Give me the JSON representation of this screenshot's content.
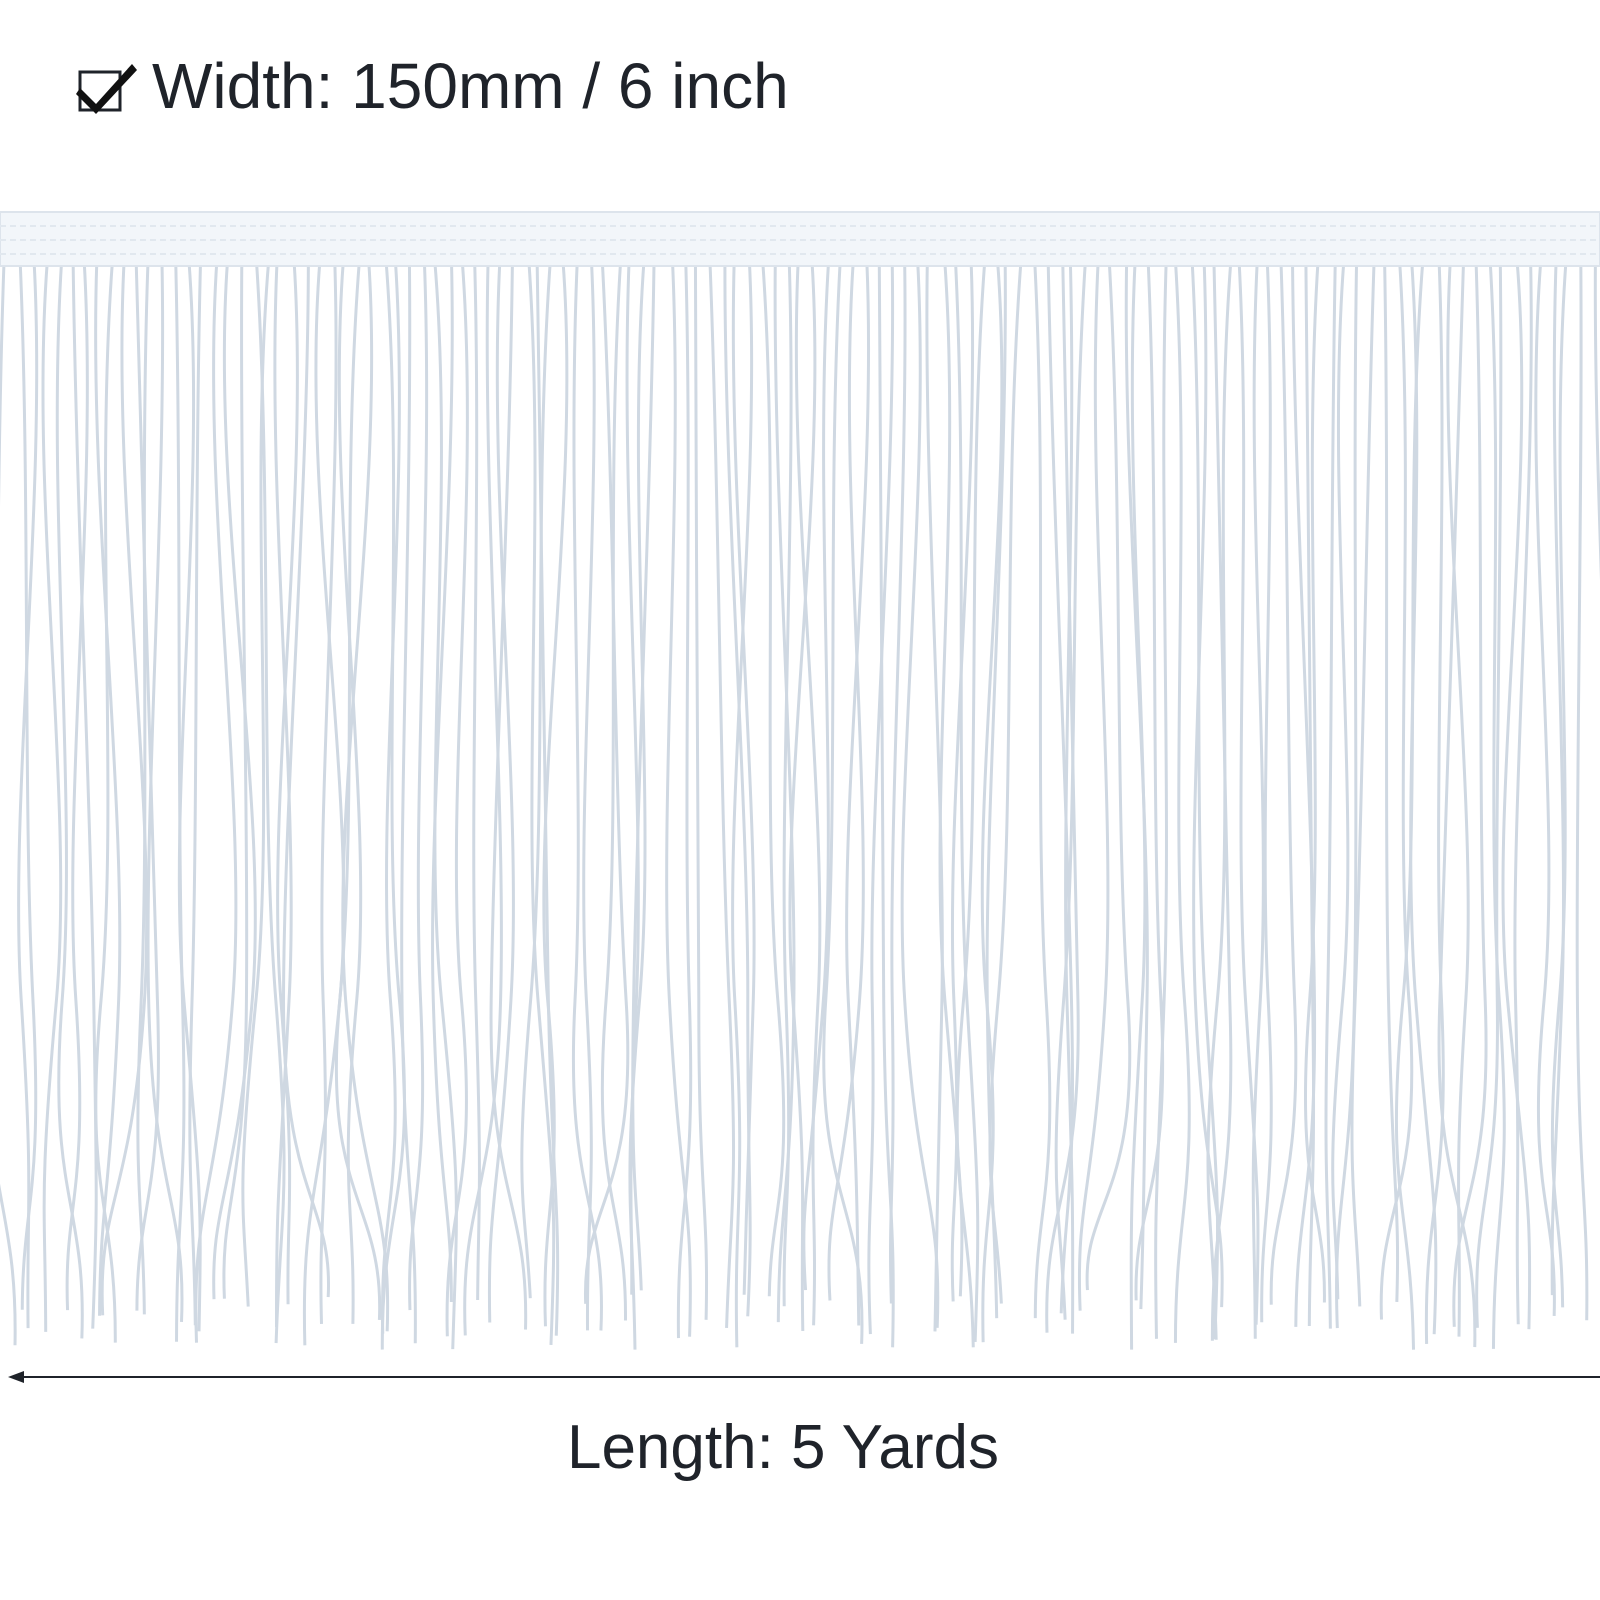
{
  "header": {
    "width_label": "Width: 150mm / 6 inch"
  },
  "footer": {
    "length_label": "Length: 5 Yards"
  }
}
